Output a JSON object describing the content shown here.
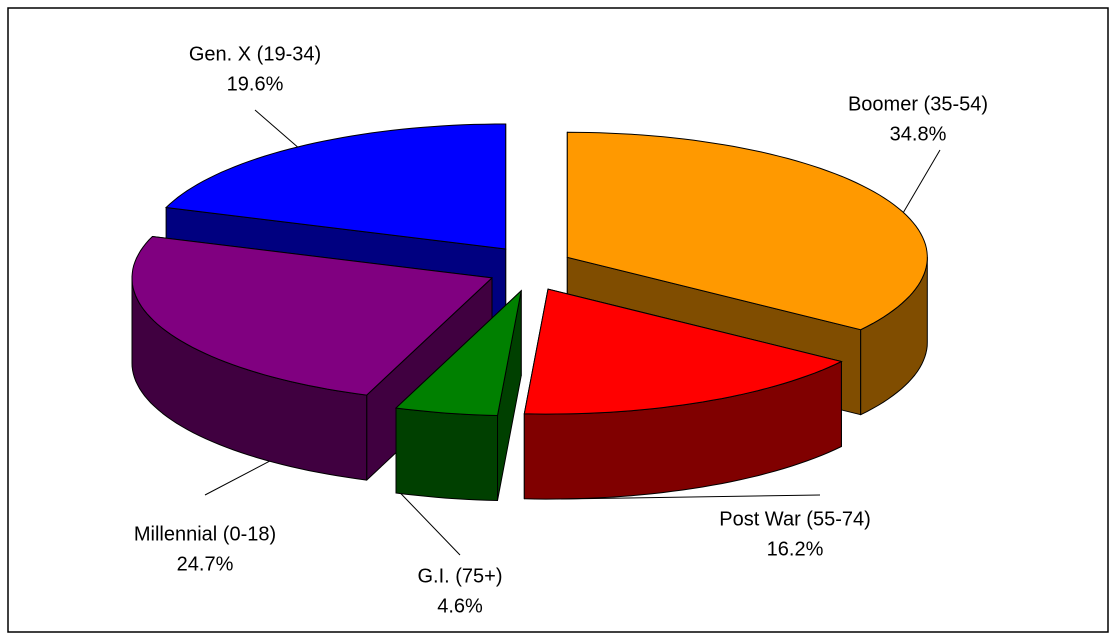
{
  "chart_data": {
    "type": "pie3d",
    "categories": [
      "Boomer (35-54)",
      "Post War (55-74)",
      "G.I. (75+)",
      "Millennial (0-18)",
      "Gen. X (19-34)"
    ],
    "values": [
      34.8,
      16.2,
      4.6,
      24.7,
      19.6
    ],
    "value_labels": [
      "34.8%",
      "16.2%",
      "4.6%",
      "24.7%",
      "19.6%"
    ],
    "colors": [
      "#ff9900",
      "#ff0000",
      "#008000",
      "#800080",
      "#0000ff"
    ]
  }
}
